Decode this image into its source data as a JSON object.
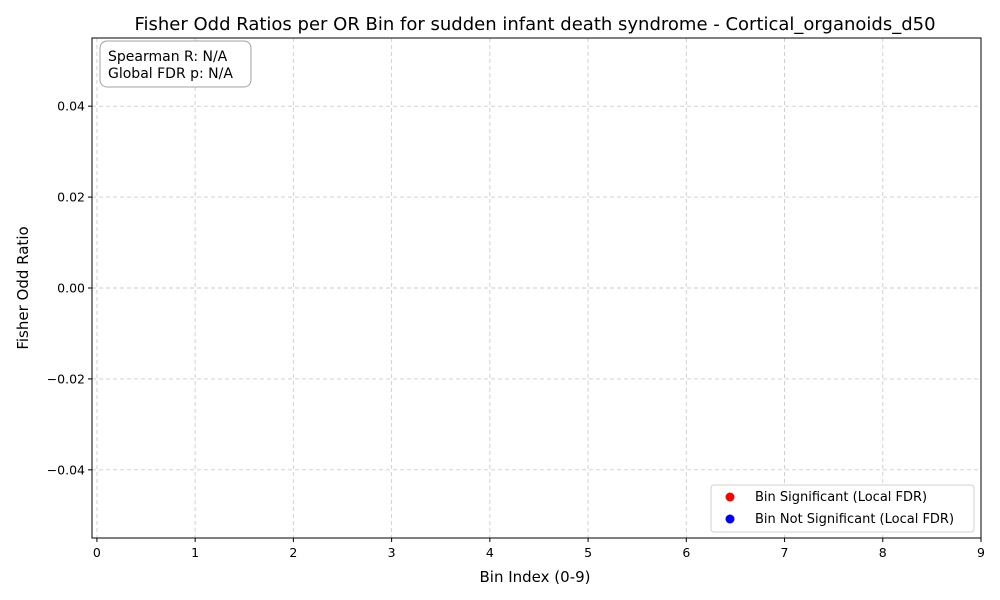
{
  "chart_data": {
    "type": "scatter",
    "title": "Fisher Odd Ratios per OR Bin for sudden infant death syndrome - Cortical_organoids_d50",
    "xlabel": "Bin Index (0-9)",
    "ylabel": "Fisher Odd Ratio",
    "xlim": [
      -0.05,
      9
    ],
    "ylim": [
      -0.055,
      0.055
    ],
    "x_ticks": [
      0,
      1,
      2,
      3,
      4,
      5,
      6,
      7,
      8,
      9
    ],
    "x_tick_labels": [
      "0",
      "1",
      "2",
      "3",
      "4",
      "5",
      "6",
      "7",
      "8",
      "9"
    ],
    "y_ticks": [
      -0.04,
      -0.02,
      0.0,
      0.02,
      0.04
    ],
    "y_tick_labels": [
      "−0.04",
      "−0.02",
      "0.00",
      "0.02",
      "0.04"
    ],
    "grid": true,
    "series": [
      {
        "name": "Bin Significant (Local FDR)",
        "color": "#ff0000",
        "x": [],
        "y": []
      },
      {
        "name": "Bin Not Significant (Local FDR)",
        "color": "#0000ff",
        "x": [],
        "y": []
      }
    ],
    "legend_position": "lower-right",
    "annotation": {
      "lines": [
        "Spearman R: N/A",
        "Global FDR p: N/A"
      ],
      "position": "top-left"
    }
  }
}
